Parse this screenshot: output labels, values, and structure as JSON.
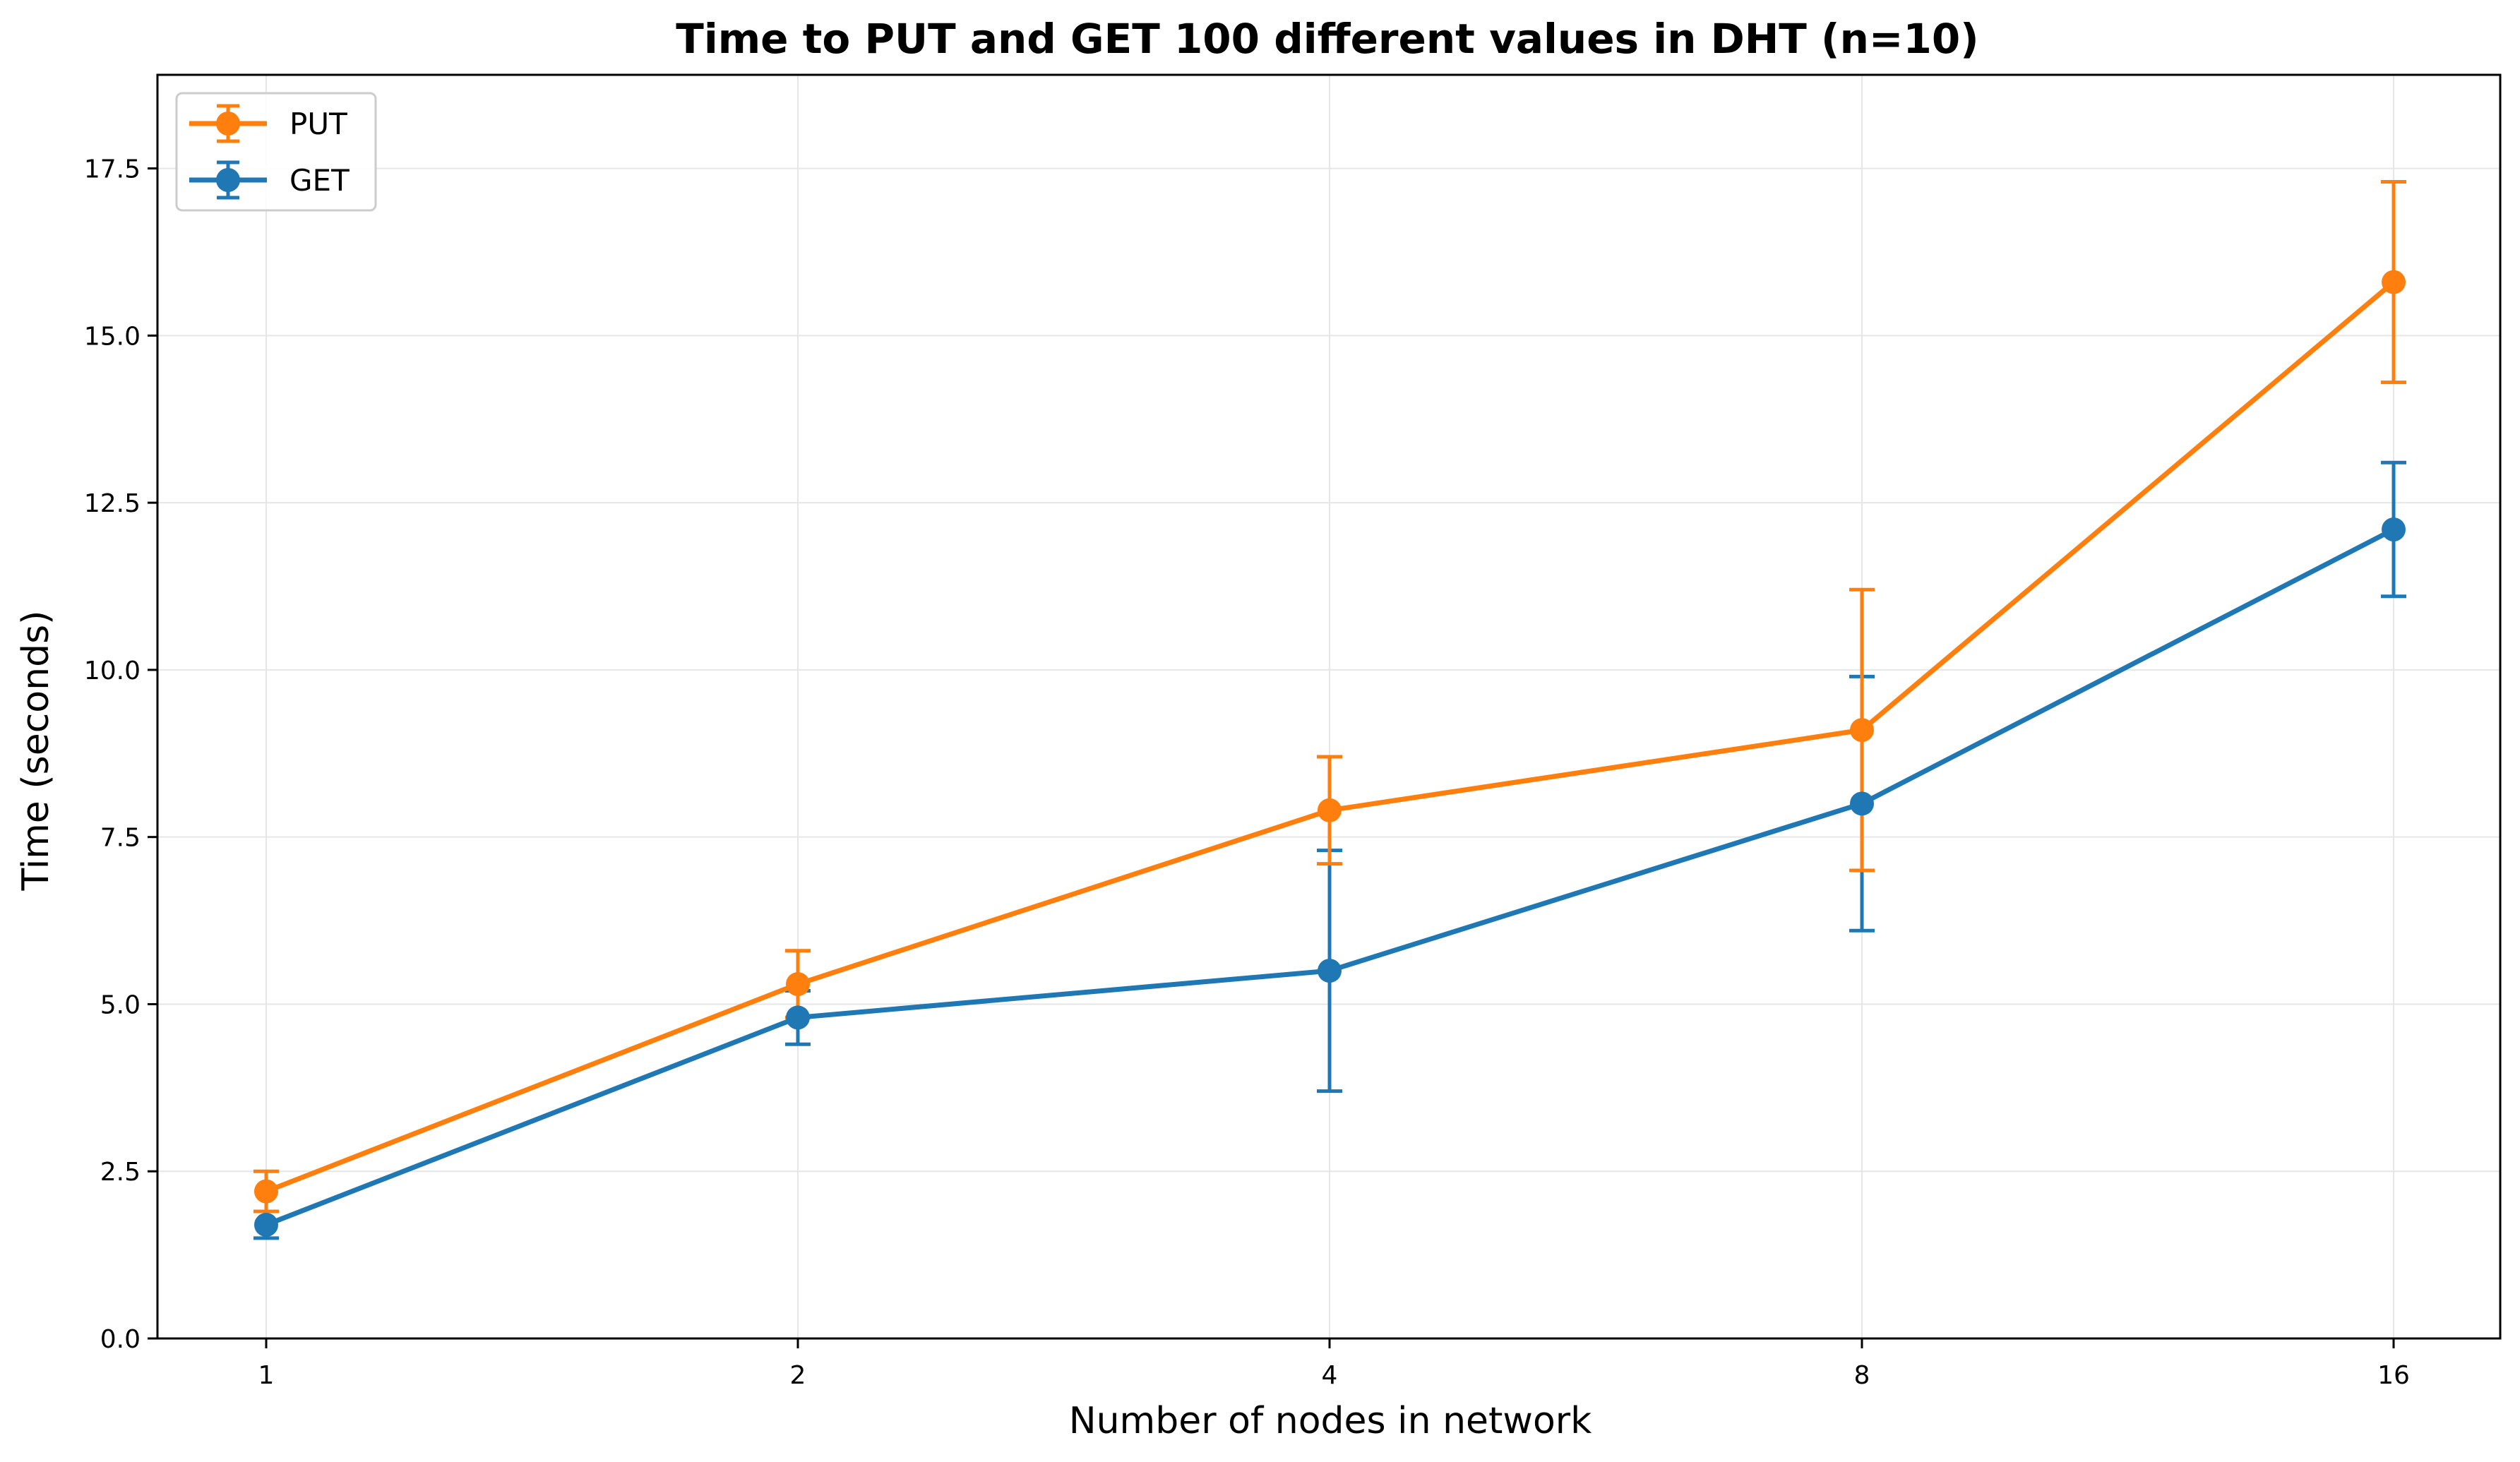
{
  "chart_data": {
    "type": "line",
    "title": "Time to PUT and GET 100 different values in DHT (n=10)",
    "xlabel": "Number of nodes in network",
    "ylabel": "Time (seconds)",
    "categories": [
      "1",
      "2",
      "4",
      "8",
      "16"
    ],
    "ylim": [
      0,
      18.9
    ],
    "yticks": [
      "0.0",
      "2.5",
      "5.0",
      "7.5",
      "10.0",
      "12.5",
      "15.0",
      "17.5"
    ],
    "ytick_values": [
      0,
      2.5,
      5,
      7.5,
      10,
      12.5,
      15,
      17.5
    ],
    "grid": true,
    "legend_position": "top-left",
    "series": [
      {
        "name": "PUT",
        "color": "#ff7f0e",
        "values": [
          2.2,
          5.3,
          7.9,
          9.1,
          15.8
        ],
        "errors": [
          0.3,
          0.5,
          0.8,
          2.1,
          1.5
        ]
      },
      {
        "name": "GET",
        "color": "#1f77b4",
        "values": [
          1.7,
          4.8,
          5.5,
          8.0,
          12.1
        ],
        "errors": [
          0.2,
          0.4,
          1.8,
          1.9,
          1.0
        ]
      }
    ]
  }
}
